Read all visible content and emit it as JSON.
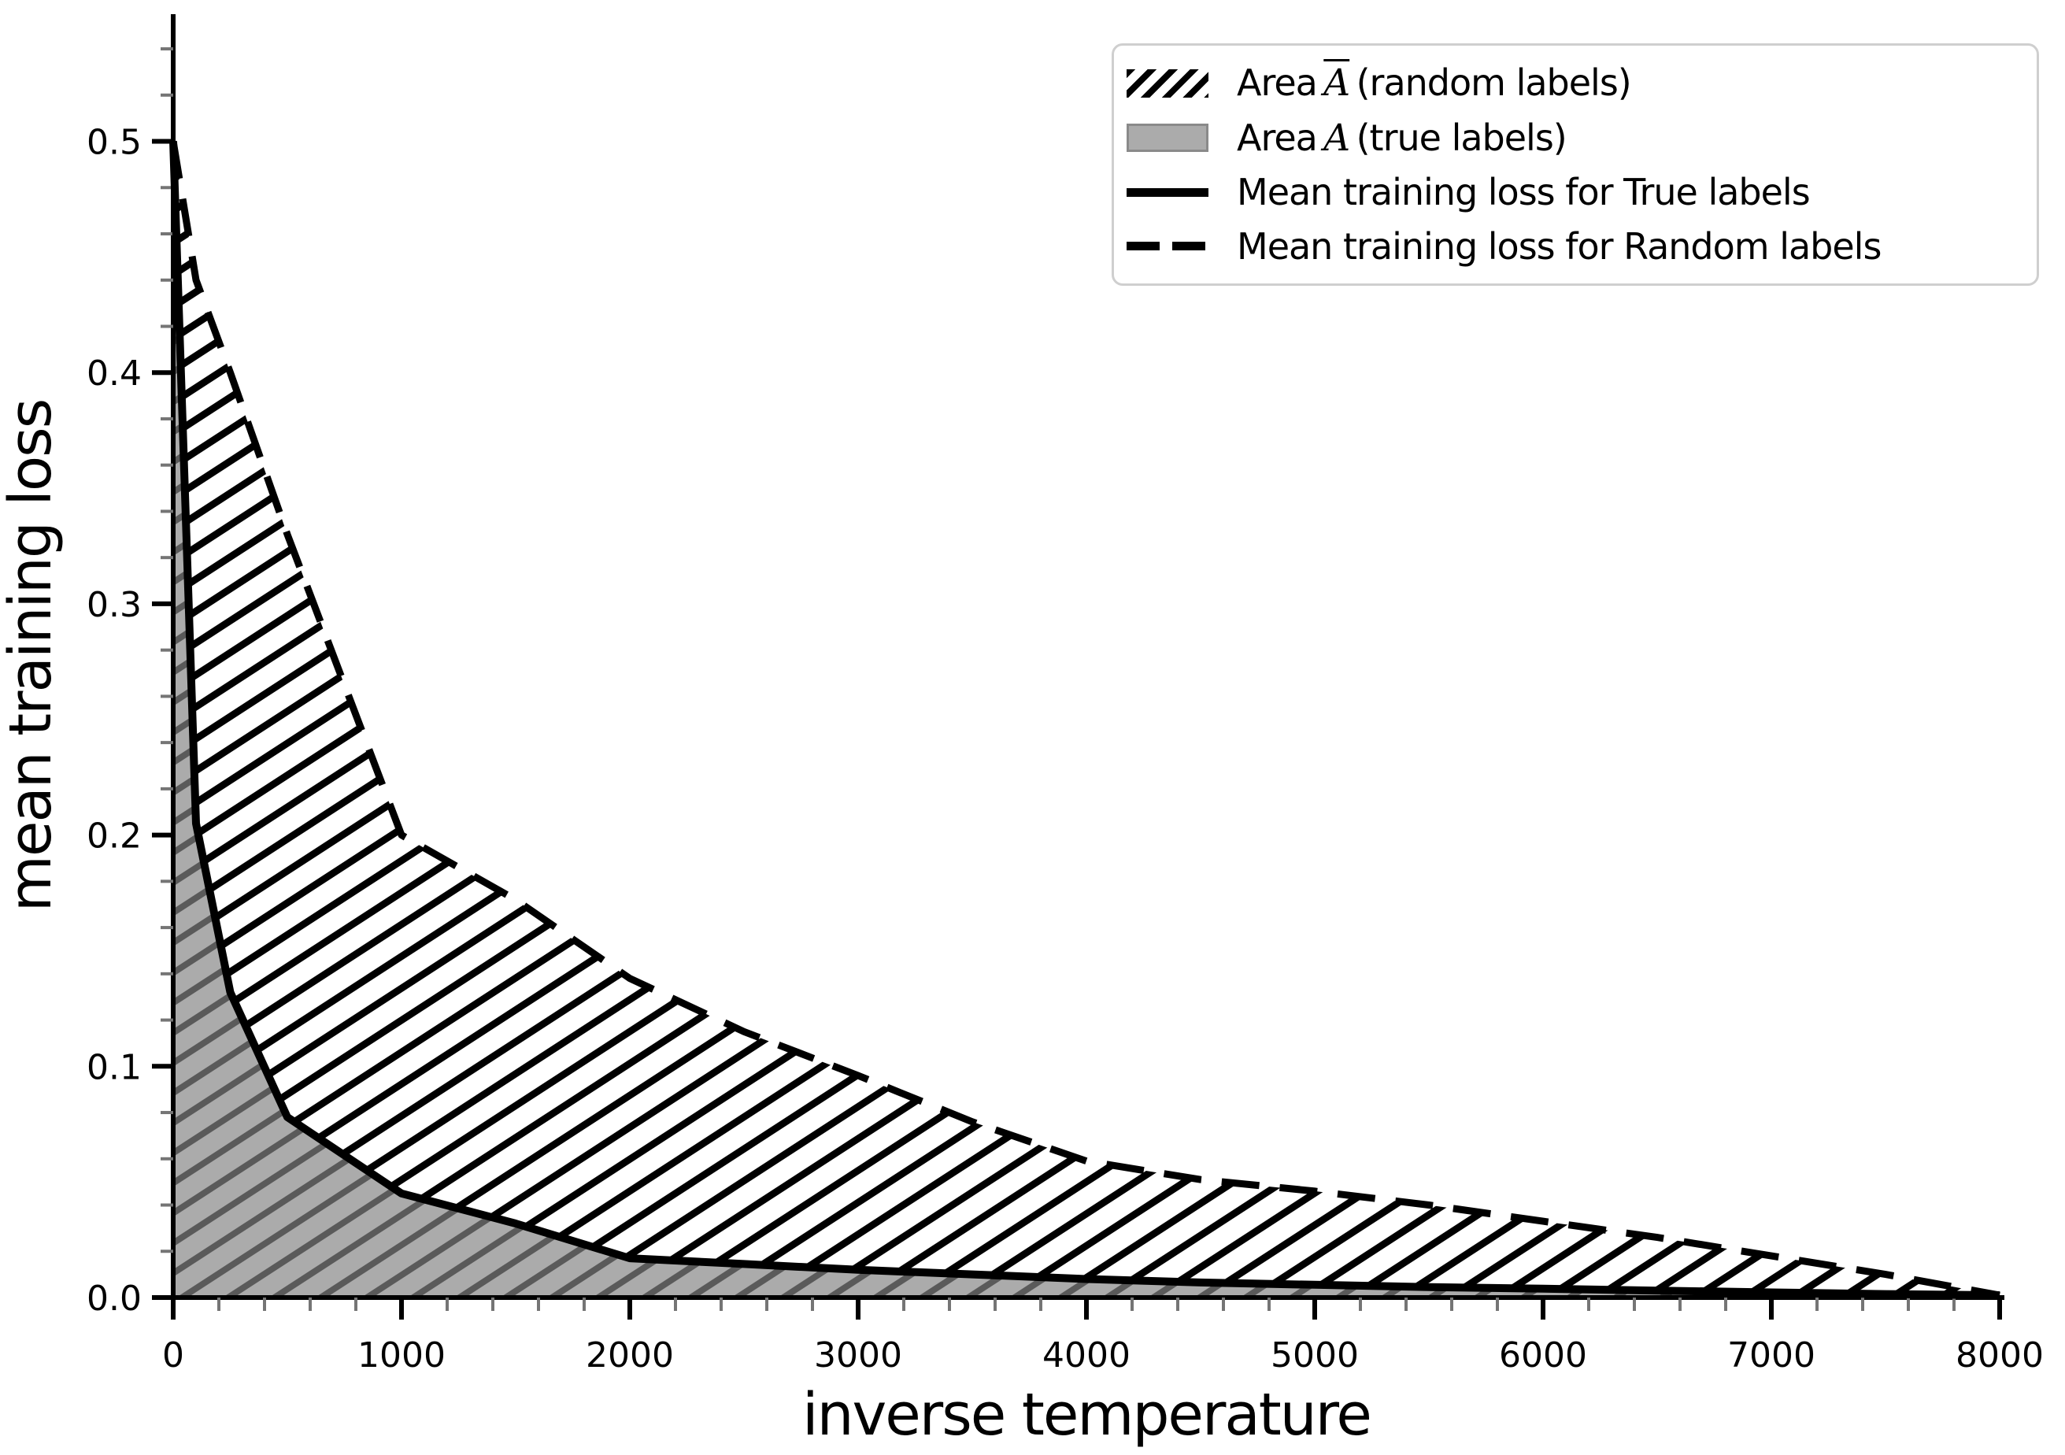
{
  "colors": {
    "background": "#ffffff",
    "curve": "#000000",
    "gray_fill": "#ababab",
    "gray_hatch": "#5a5a5a",
    "black_hatch": "#000000",
    "minor_tick": "#757575",
    "major_tick": "#000000",
    "legend_border": "#cfcfcf",
    "legend_swatch_border": "#8a8a8a"
  },
  "legend": {
    "items": [
      {
        "pre": "Area",
        "symbol": "A",
        "symbol_bar": true,
        "post": "(random labels)"
      },
      {
        "pre": "Area",
        "symbol": "A",
        "symbol_bar": false,
        "post": "(true labels)"
      },
      {
        "label": "Mean training loss for True labels"
      },
      {
        "label": "Mean training loss for Random labels"
      }
    ]
  },
  "chart_data": {
    "type": "area",
    "title": "",
    "xlabel": "inverse temperature",
    "ylabel": "mean training loss",
    "xlim": [
      0,
      8000
    ],
    "ylim": [
      0,
      0.555
    ],
    "grid": false,
    "legend_position": "upper right",
    "x": [
      0,
      100,
      250,
      500,
      1000,
      1500,
      2000,
      2500,
      3000,
      3500,
      4000,
      4500,
      5000,
      5500,
      6000,
      6500,
      7000,
      7500,
      8000
    ],
    "series": [
      {
        "name": "Mean training loss for True labels",
        "style": "solid",
        "line_width": 10,
        "values": [
          0.5,
          0.205,
          0.132,
          0.078,
          0.045,
          0.032,
          0.017,
          0.0145,
          0.012,
          0.01,
          0.008,
          0.0065,
          0.0055,
          0.0045,
          0.0038,
          0.003,
          0.0022,
          0.0015,
          0.001
        ]
      },
      {
        "name": "Mean training loss for Random labels",
        "style": "dashed",
        "line_width": 9,
        "dash": [
          48,
          26
        ],
        "values": [
          0.5,
          0.44,
          0.4,
          0.33,
          0.2,
          0.172,
          0.138,
          0.115,
          0.096,
          0.076,
          0.059,
          0.051,
          0.046,
          0.04,
          0.033,
          0.026,
          0.018,
          0.01,
          0.001
        ]
      }
    ],
    "areas": [
      {
        "name": "Area A-bar (random labels)",
        "between": "random-and-true",
        "fill": "black-hatch-on-white"
      },
      {
        "name": "Area A (true labels)",
        "between": "true-and-zero",
        "fill": "gray-with-dark-hatch"
      }
    ],
    "x_major_ticks": [
      {
        "v": 0,
        "label": "0"
      },
      {
        "v": 1000,
        "label": "1000"
      },
      {
        "v": 2000,
        "label": "2000"
      },
      {
        "v": 3000,
        "label": "3000"
      },
      {
        "v": 4000,
        "label": "4000"
      },
      {
        "v": 5000,
        "label": "5000"
      },
      {
        "v": 6000,
        "label": "6000"
      },
      {
        "v": 7000,
        "label": "7000"
      },
      {
        "v": 8000,
        "label": "8000"
      }
    ],
    "x_minor_step": 200,
    "y_major_ticks": [
      {
        "v": 0.0,
        "label": "0.0"
      },
      {
        "v": 0.1,
        "label": "0.1"
      },
      {
        "v": 0.2,
        "label": "0.2"
      },
      {
        "v": 0.3,
        "label": "0.3"
      },
      {
        "v": 0.4,
        "label": "0.4"
      },
      {
        "v": 0.5,
        "label": "0.5"
      }
    ],
    "y_minor_step": 0.02,
    "y_minor_max": 0.54
  }
}
